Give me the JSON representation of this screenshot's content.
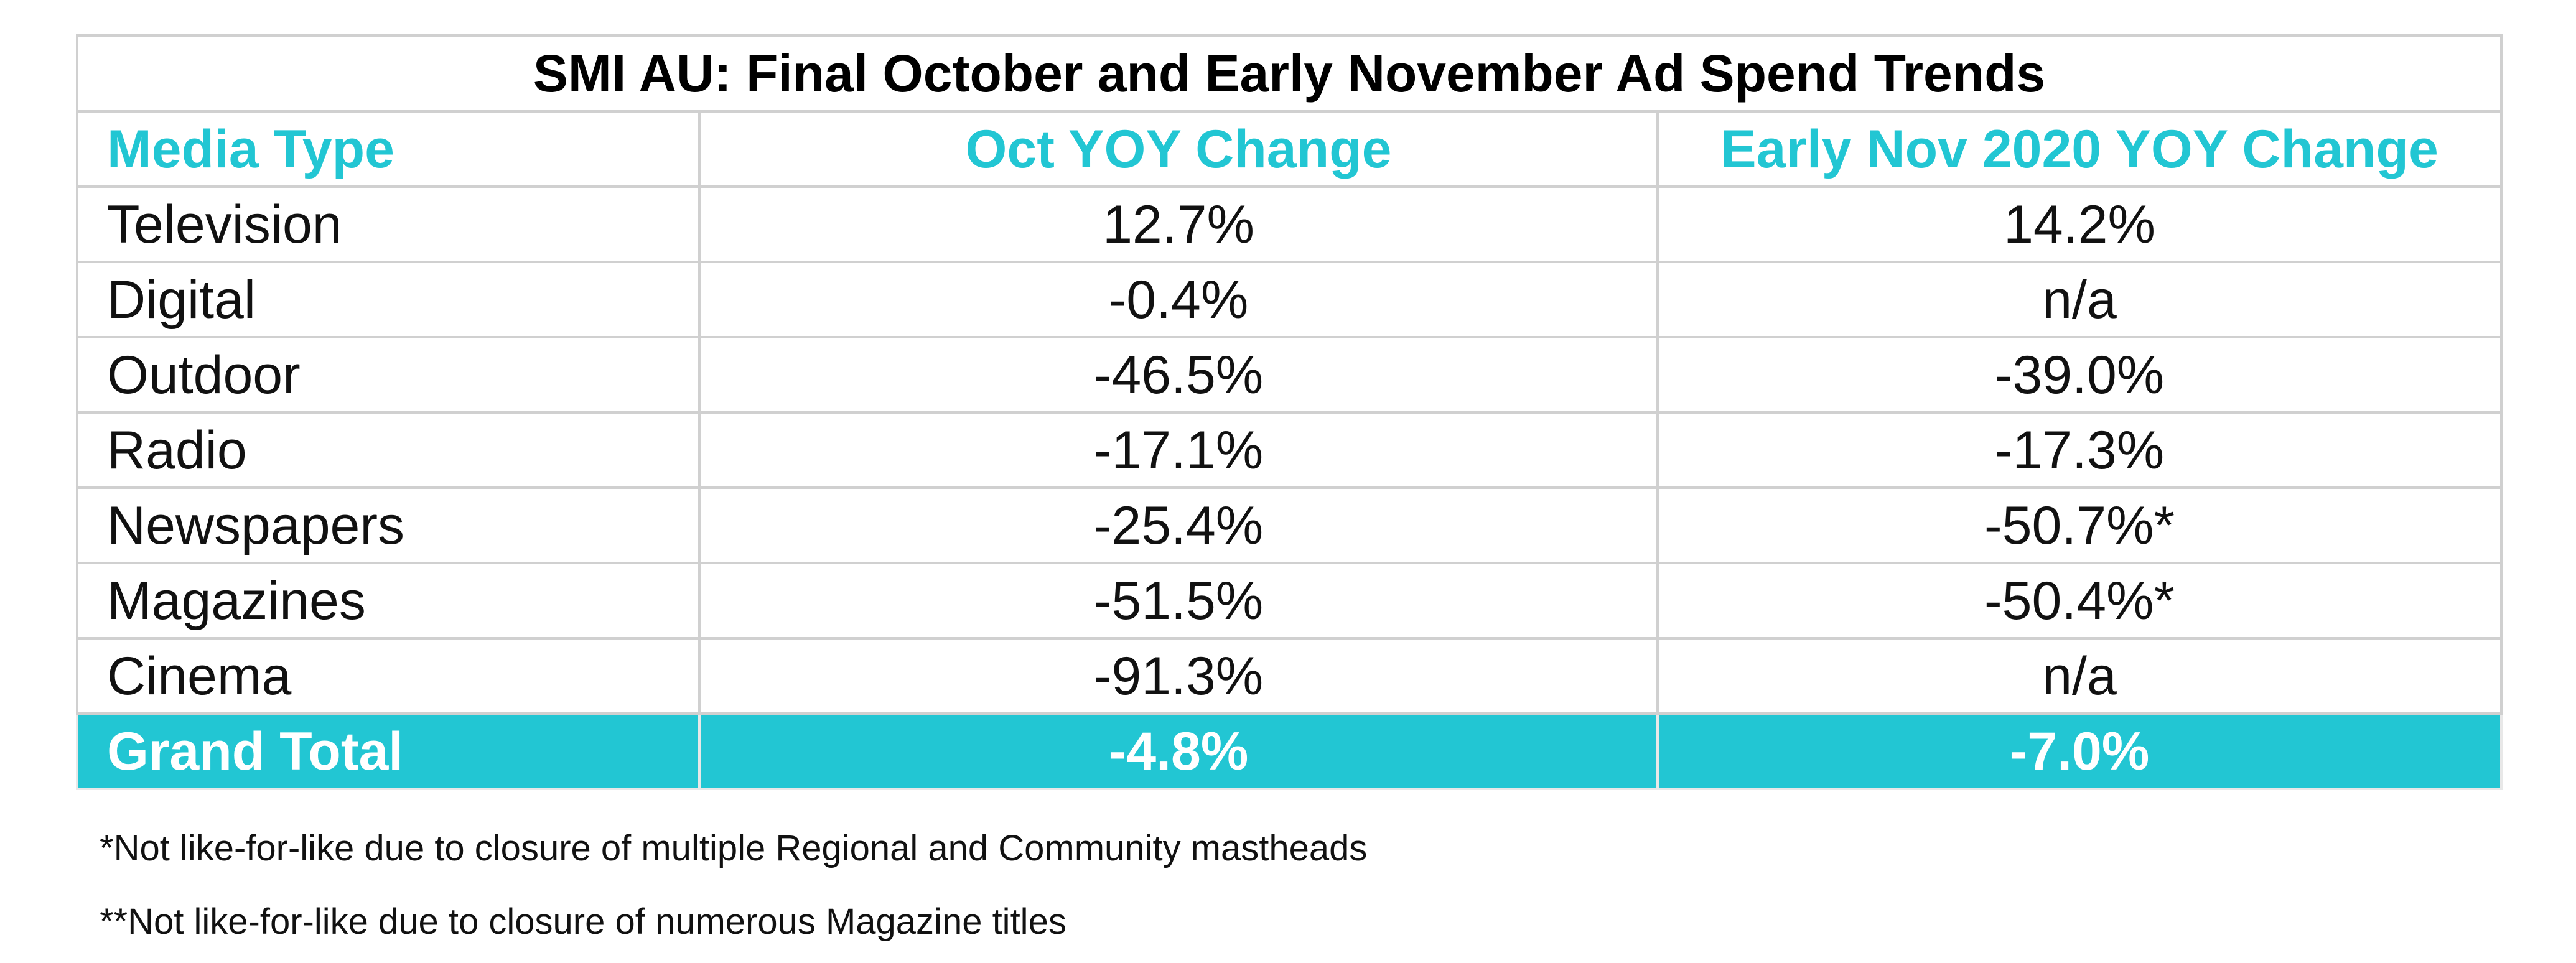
{
  "title": "SMI AU: Final October and Early November Ad Spend Trends",
  "columns": [
    "Media Type",
    "Oct YOY Change",
    "Early Nov 2020 YOY Change"
  ],
  "rows": [
    {
      "media": "Television",
      "oct": "12.7%",
      "nov": "14.2%"
    },
    {
      "media": "Digital",
      "oct": "-0.4%",
      "nov": "n/a"
    },
    {
      "media": "Outdoor",
      "oct": "-46.5%",
      "nov": "-39.0%"
    },
    {
      "media": "Radio",
      "oct": "-17.1%",
      "nov": "-17.3%"
    },
    {
      "media": "Newspapers",
      "oct": "-25.4%",
      "nov": "-50.7%*"
    },
    {
      "media": "Magazines",
      "oct": "-51.5%",
      "nov": "-50.4%*"
    },
    {
      "media": "Cinema",
      "oct": "-91.3%",
      "nov": "n/a"
    }
  ],
  "total": {
    "media": "Grand Total",
    "oct": "-4.8%",
    "nov": "-7.0%"
  },
  "footnotes": [
    "*Not like-for-like due to closure of multiple Regional and Community mastheads",
    "**Not like-for-like due to closure of numerous Magazine titles"
  ],
  "colors": {
    "accent": "#22c6d3",
    "border": "#d0d0d0",
    "total_text": "#ffffff"
  }
}
